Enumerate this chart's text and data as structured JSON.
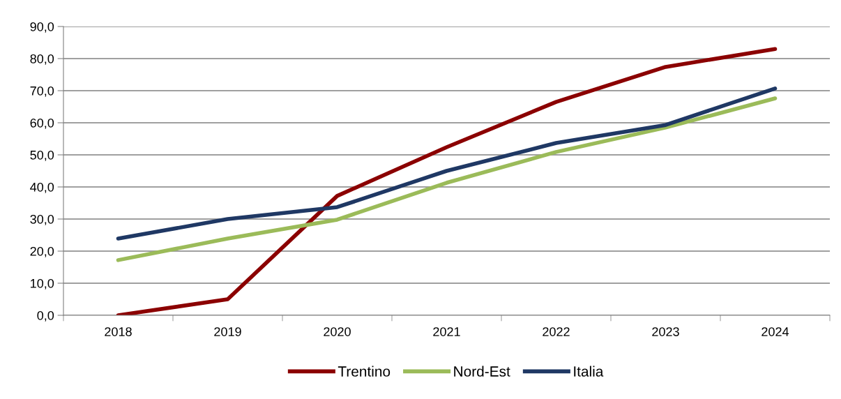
{
  "chart_data": {
    "type": "line",
    "categories": [
      "2018",
      "2019",
      "2020",
      "2021",
      "2022",
      "2023",
      "2024"
    ],
    "series": [
      {
        "name": "Trentino",
        "color": "#8b0000",
        "values": [
          0.0,
          5.0,
          37.2,
          52.4,
          66.5,
          77.4,
          83.0
        ]
      },
      {
        "name": "Nord-Est",
        "color": "#9bbb59",
        "values": [
          17.2,
          23.9,
          29.8,
          41.3,
          50.9,
          58.5,
          67.6
        ]
      },
      {
        "name": "Italia",
        "color": "#1f3864",
        "values": [
          23.9,
          30.0,
          33.7,
          45.0,
          53.7,
          59.3,
          70.7
        ]
      }
    ],
    "ylim": [
      0,
      90
    ],
    "yticks": [
      {
        "value": 0,
        "label": "0,0"
      },
      {
        "value": 10,
        "label": "10,0"
      },
      {
        "value": 20,
        "label": "20,0"
      },
      {
        "value": 30,
        "label": "30,0"
      },
      {
        "value": 40,
        "label": "40,0"
      },
      {
        "value": 50,
        "label": "50,0"
      },
      {
        "value": 60,
        "label": "60,0"
      },
      {
        "value": 70,
        "label": "70,0"
      },
      {
        "value": 80,
        "label": "80,0"
      },
      {
        "value": 90,
        "label": "90,0"
      }
    ],
    "grid": "y",
    "legend": "bottom",
    "marker": "none",
    "line_style": "solid"
  }
}
